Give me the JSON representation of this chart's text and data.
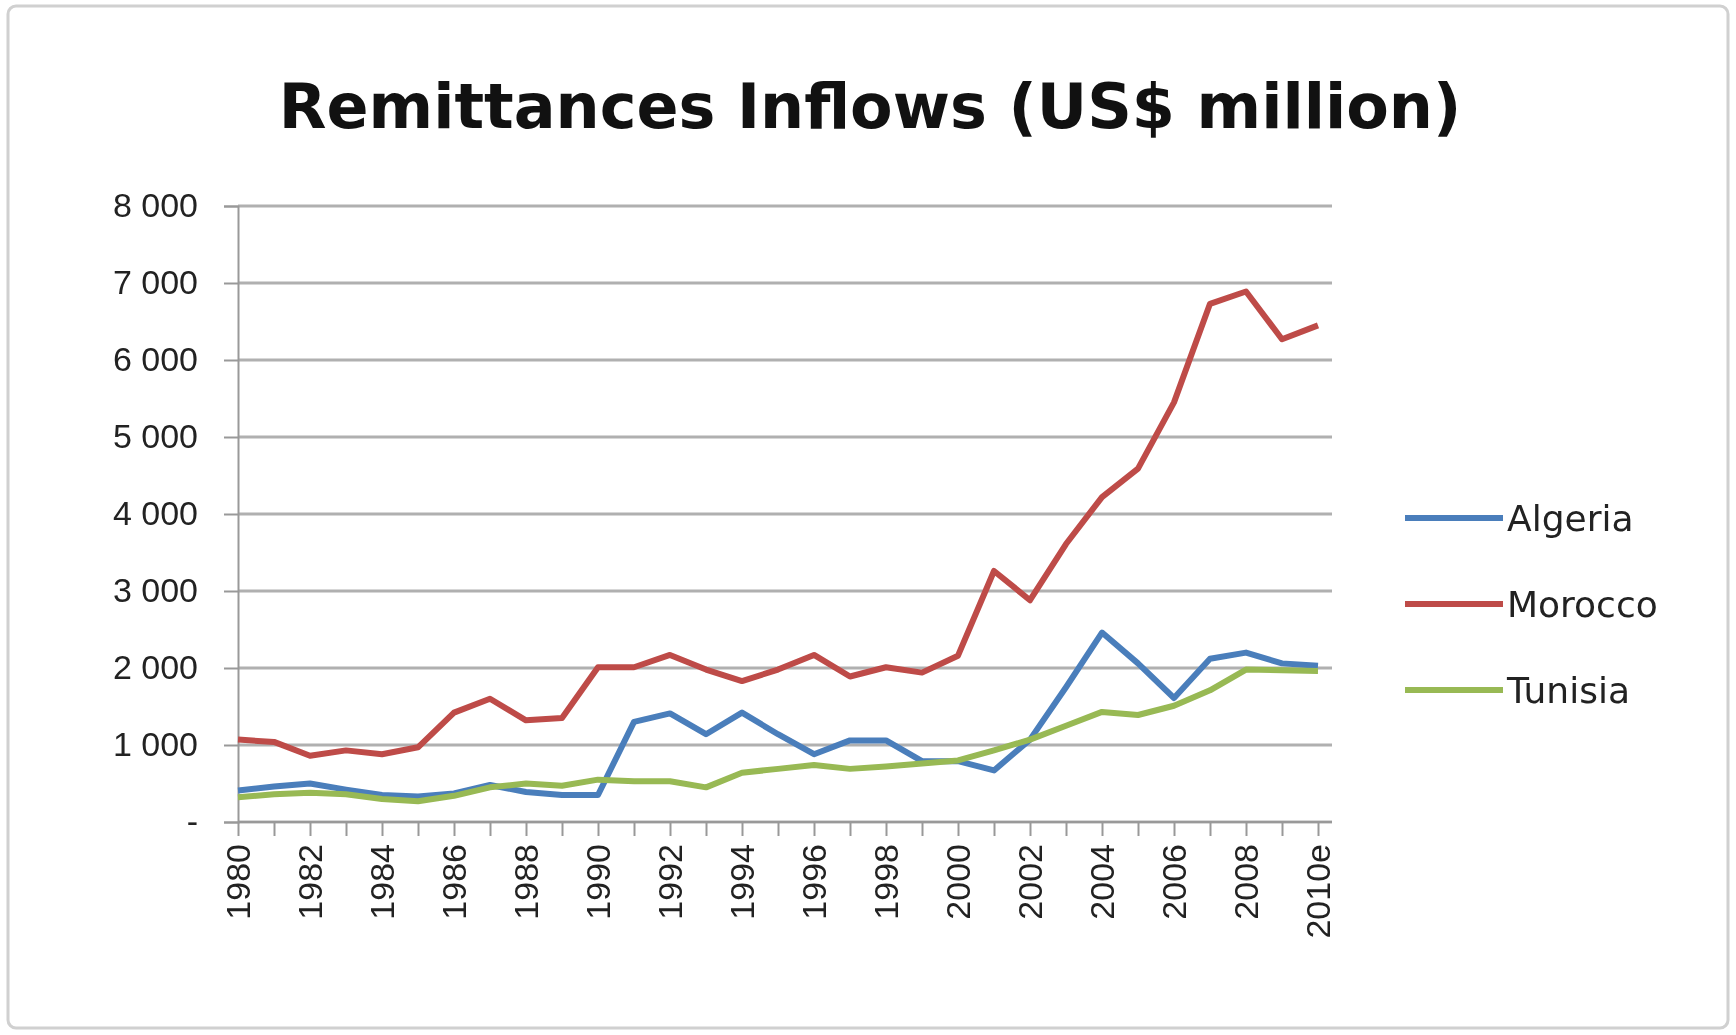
{
  "chart_data": {
    "type": "line",
    "title": "Remittances Inflows (US$ million)",
    "categories": [
      "1980",
      null,
      "1982",
      null,
      "1984",
      null,
      "1986",
      null,
      "1988",
      null,
      "1990",
      null,
      "1992",
      null,
      "1994",
      null,
      "1996",
      null,
      "1998",
      null,
      "2000",
      null,
      "2002",
      null,
      "2004",
      null,
      "2006",
      null,
      "2008",
      null,
      "2010e"
    ],
    "series": [
      {
        "name": "Algeria",
        "color": "#4a7ebb",
        "values": [
          410,
          460,
          500,
          420,
          350,
          330,
          370,
          480,
          390,
          350,
          350,
          1300,
          1410,
          1140,
          1420,
          1140,
          880,
          1060,
          1060,
          790,
          790,
          670,
          1070,
          1750,
          2460,
          2060,
          1610,
          2120,
          2200,
          2060,
          2030
        ]
      },
      {
        "name": "Morocco",
        "color": "#be4b48",
        "values": [
          1070,
          1040,
          860,
          930,
          880,
          970,
          1420,
          1600,
          1320,
          1350,
          2010,
          2010,
          2170,
          1980,
          1830,
          1980,
          2170,
          1890,
          2010,
          1940,
          2160,
          3260,
          2880,
          3610,
          4220,
          4590,
          5450,
          6730,
          6890,
          6270,
          6450
        ]
      },
      {
        "name": "Tunisia",
        "color": "#98b954",
        "values": [
          320,
          360,
          380,
          360,
          300,
          270,
          340,
          450,
          500,
          470,
          550,
          530,
          530,
          450,
          640,
          690,
          740,
          690,
          720,
          760,
          800,
          930,
          1070,
          1250,
          1430,
          1390,
          1510,
          1710,
          1980,
          1970,
          1960
        ]
      }
    ],
    "ylim": [
      0,
      8000
    ],
    "yticks": [
      {
        "value": 0,
        "label": "-"
      },
      {
        "value": 1000,
        "label": "1 000"
      },
      {
        "value": 2000,
        "label": "2 000"
      },
      {
        "value": 3000,
        "label": "3 000"
      },
      {
        "value": 4000,
        "label": "4 000"
      },
      {
        "value": 5000,
        "label": "5 000"
      },
      {
        "value": 6000,
        "label": "6 000"
      },
      {
        "value": 7000,
        "label": "7 000"
      },
      {
        "value": 8000,
        "label": "8 000"
      }
    ],
    "grid": "y",
    "legend": "right",
    "line_style": "solid",
    "marker": "none"
  }
}
